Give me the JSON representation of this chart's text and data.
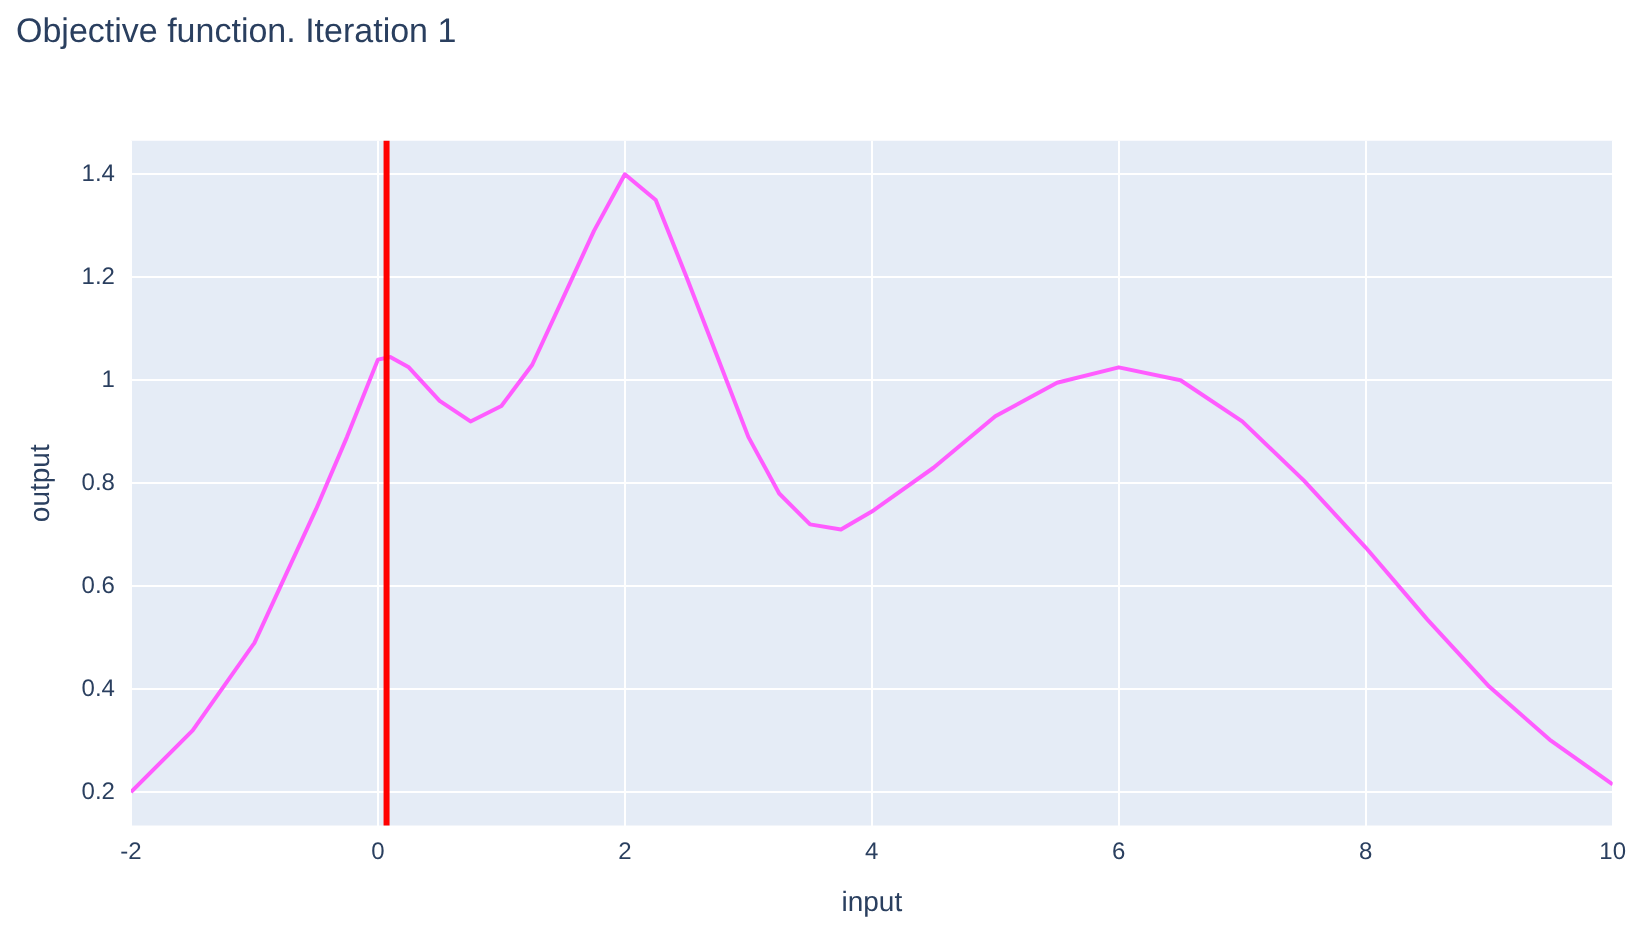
{
  "chart_data": {
    "type": "line",
    "title": "Objective function. Iteration 1",
    "xlabel": "input",
    "ylabel": "output",
    "xlim": [
      -2,
      10
    ],
    "ylim": [
      0.135,
      1.465
    ],
    "xticks": [
      -2,
      0,
      2,
      4,
      6,
      8,
      10
    ],
    "yticks": [
      0.2,
      0.4,
      0.6,
      0.8,
      1,
      1.2,
      1.4
    ],
    "grid": true,
    "legend": false,
    "marker": "none",
    "line_style": "solid",
    "series": [
      {
        "color": "#ff5cff",
        "x": [
          -2,
          -1.5,
          -1,
          -0.5,
          -0.25,
          0,
          0.1,
          0.25,
          0.5,
          0.75,
          1,
          1.25,
          1.5,
          1.75,
          2,
          2.25,
          2.5,
          2.75,
          3,
          3.25,
          3.5,
          3.75,
          4,
          4.5,
          5,
          5.5,
          6,
          6.5,
          7,
          7.5,
          8,
          8.5,
          9,
          9.5,
          10
        ],
        "values": [
          0.2,
          0.32,
          0.49,
          0.75,
          0.89,
          1.04,
          1.045,
          1.025,
          0.96,
          0.92,
          0.95,
          1.03,
          1.16,
          1.29,
          1.4,
          1.35,
          1.2,
          1.045,
          0.89,
          0.78,
          0.72,
          0.71,
          0.745,
          0.83,
          0.93,
          0.995,
          1.025,
          1.0,
          0.92,
          0.805,
          0.675,
          0.535,
          0.405,
          0.3,
          0.215
        ]
      }
    ],
    "ref_lines": [
      {
        "axis": "x",
        "value": 0.07,
        "color": "#ff0000",
        "line_style": "solid"
      }
    ]
  }
}
